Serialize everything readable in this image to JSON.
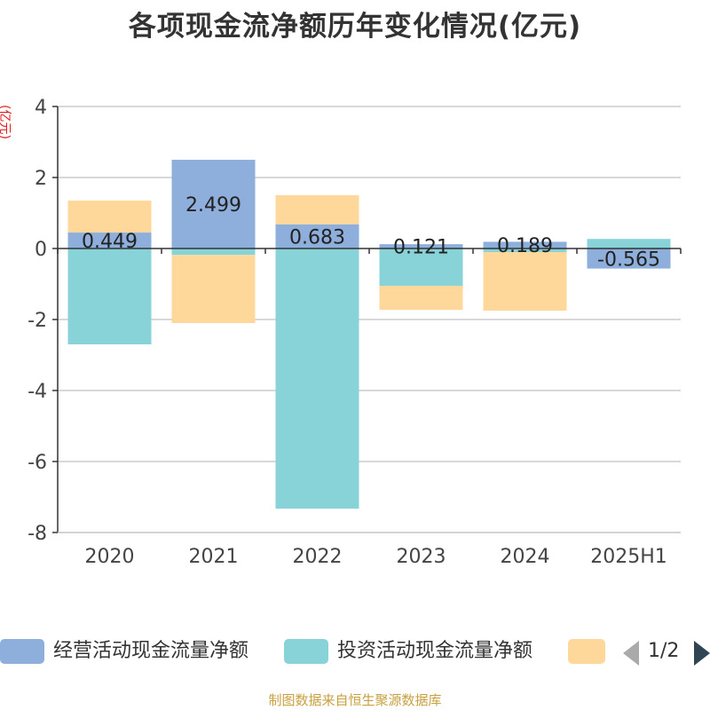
{
  "chart_data": {
    "type": "bar",
    "stacked": true,
    "title": "各项现金流净额历年变化情况(亿元)",
    "ylabel": "(亿元)",
    "categories": [
      "2020",
      "2021",
      "2022",
      "2023",
      "2024",
      "2025H1"
    ],
    "ylim": [
      -8,
      4
    ],
    "yticks": [
      4,
      2,
      0,
      -2,
      -4,
      -6,
      -8
    ],
    "grid": true,
    "series": [
      {
        "name": "经营活动现金流量净额",
        "color": "#8eaedb",
        "values": [
          0.449,
          2.499,
          0.683,
          0.121,
          0.189,
          -0.565
        ],
        "labels": [
          "0.449",
          "2.499",
          "0.683",
          "0.121",
          "0.189",
          "-0.565"
        ]
      },
      {
        "name": "投资活动现金流量净额",
        "color": "#88d3d8",
        "values": [
          -2.7,
          -0.18,
          -7.33,
          -1.05,
          -0.1,
          0.27
        ]
      },
      {
        "name": "",
        "color": "#fdd89a",
        "values": [
          0.9,
          -1.92,
          0.82,
          -0.68,
          -1.65,
          0
        ]
      }
    ],
    "legend_position": "bottom",
    "legend_pager": "1/2"
  },
  "source": "制图数据来自恒生聚源数据库"
}
